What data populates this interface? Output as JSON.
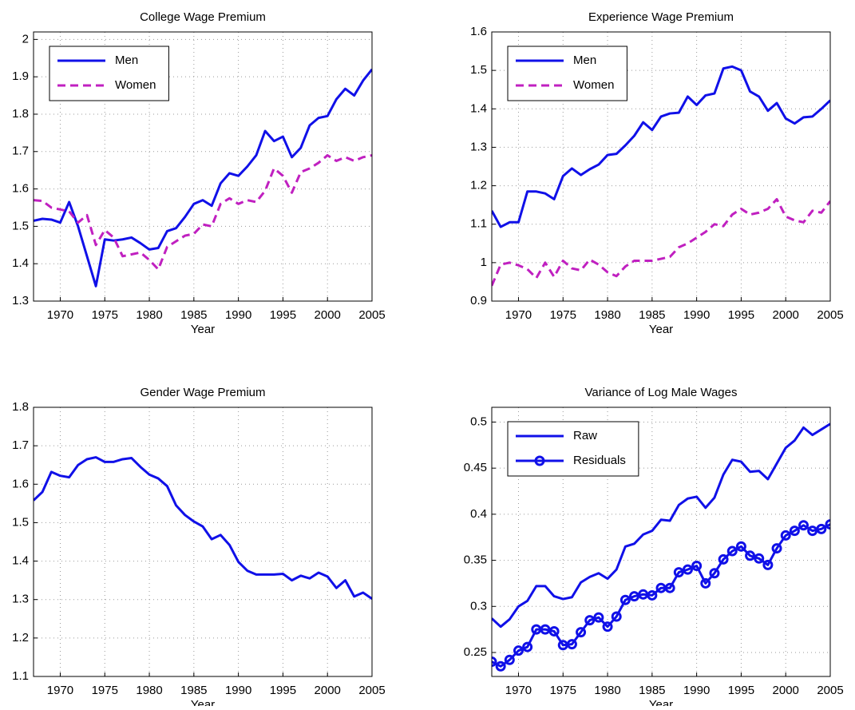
{
  "chart_data": [
    {
      "type": "line",
      "title": "College Wage Premium",
      "xlabel": "Year",
      "x": [
        1967,
        1968,
        1969,
        1970,
        1971,
        1972,
        1973,
        1974,
        1975,
        1976,
        1977,
        1978,
        1979,
        1980,
        1981,
        1982,
        1983,
        1984,
        1985,
        1986,
        1987,
        1988,
        1989,
        1990,
        1991,
        1992,
        1993,
        1994,
        1995,
        1996,
        1997,
        1998,
        1999,
        2000,
        2001,
        2002,
        2003,
        2004,
        2005
      ],
      "series": [
        {
          "name": "Men",
          "color": "#1010e8",
          "dash": "solid",
          "values": [
            1.515,
            1.52,
            1.518,
            1.51,
            1.565,
            1.5,
            1.42,
            1.34,
            1.465,
            1.462,
            1.465,
            1.47,
            1.455,
            1.438,
            1.442,
            1.487,
            1.495,
            1.525,
            1.56,
            1.57,
            1.555,
            1.615,
            1.642,
            1.635,
            1.66,
            1.69,
            1.755,
            1.728,
            1.74,
            1.685,
            1.71,
            1.77,
            1.79,
            1.795,
            1.84,
            1.868,
            1.85,
            1.89,
            1.92
          ]
        },
        {
          "name": "Women",
          "color": "#c020c0",
          "dash": "dashed",
          "values": [
            1.57,
            1.568,
            1.55,
            1.545,
            1.54,
            1.51,
            1.53,
            1.45,
            1.49,
            1.47,
            1.42,
            1.425,
            1.43,
            1.41,
            1.385,
            1.445,
            1.46,
            1.475,
            1.48,
            1.505,
            1.5,
            1.56,
            1.575,
            1.56,
            1.57,
            1.565,
            1.595,
            1.655,
            1.635,
            1.59,
            1.645,
            1.655,
            1.67,
            1.69,
            1.675,
            1.685,
            1.675,
            1.685,
            1.69
          ]
        }
      ],
      "xlim": [
        1967,
        2005
      ],
      "xticks": [
        1970,
        1975,
        1980,
        1985,
        1990,
        1995,
        2000,
        2005
      ],
      "ylim": [
        1.3,
        2.02
      ],
      "yticks": [
        1.3,
        1.4,
        1.5,
        1.6,
        1.7,
        1.8,
        1.9,
        2
      ],
      "grid": true,
      "legend": "upper-left"
    },
    {
      "type": "line",
      "title": "Experience Wage Premium",
      "xlabel": "Year",
      "x": [
        1967,
        1968,
        1969,
        1970,
        1971,
        1972,
        1973,
        1974,
        1975,
        1976,
        1977,
        1978,
        1979,
        1980,
        1981,
        1982,
        1983,
        1984,
        1985,
        1986,
        1987,
        1988,
        1989,
        1990,
        1991,
        1992,
        1993,
        1994,
        1995,
        1996,
        1997,
        1998,
        1999,
        2000,
        2001,
        2002,
        2003,
        2004,
        2005
      ],
      "series": [
        {
          "name": "Men",
          "color": "#1010e8",
          "dash": "solid",
          "values": [
            1.135,
            1.093,
            1.105,
            1.105,
            1.185,
            1.185,
            1.18,
            1.165,
            1.225,
            1.245,
            1.228,
            1.243,
            1.255,
            1.28,
            1.283,
            1.305,
            1.33,
            1.365,
            1.345,
            1.38,
            1.388,
            1.39,
            1.432,
            1.41,
            1.435,
            1.44,
            1.505,
            1.51,
            1.5,
            1.445,
            1.432,
            1.395,
            1.415,
            1.375,
            1.362,
            1.378,
            1.38,
            1.4,
            1.422
          ]
        },
        {
          "name": "Women",
          "color": "#c020c0",
          "dash": "dashed",
          "values": [
            0.94,
            0.995,
            1.0,
            0.993,
            0.983,
            0.96,
            1.0,
            0.963,
            1.005,
            0.985,
            0.98,
            1.008,
            0.995,
            0.975,
            0.965,
            0.99,
            1.005,
            1.005,
            1.005,
            1.01,
            1.015,
            1.04,
            1.05,
            1.065,
            1.08,
            1.1,
            1.095,
            1.125,
            1.14,
            1.125,
            1.13,
            1.14,
            1.165,
            1.12,
            1.11,
            1.105,
            1.135,
            1.13,
            1.16
          ]
        }
      ],
      "xlim": [
        1967,
        2005
      ],
      "xticks": [
        1970,
        1975,
        1980,
        1985,
        1990,
        1995,
        2000,
        2005
      ],
      "ylim": [
        0.9,
        1.6
      ],
      "yticks": [
        0.9,
        1,
        1.1,
        1.2,
        1.3,
        1.4,
        1.5,
        1.6
      ],
      "grid": true,
      "legend": "upper-left"
    },
    {
      "type": "line",
      "title": "Gender Wage Premium",
      "xlabel": "Year",
      "x": [
        1967,
        1968,
        1969,
        1970,
        1971,
        1972,
        1973,
        1974,
        1975,
        1976,
        1977,
        1978,
        1979,
        1980,
        1981,
        1982,
        1983,
        1984,
        1985,
        1986,
        1987,
        1988,
        1989,
        1990,
        1991,
        1992,
        1993,
        1994,
        1995,
        1996,
        1997,
        1998,
        1999,
        2000,
        2001,
        2002,
        2003,
        2004,
        2005
      ],
      "color": "#1010e8",
      "values": [
        1.558,
        1.58,
        1.632,
        1.622,
        1.618,
        1.65,
        1.665,
        1.67,
        1.658,
        1.658,
        1.665,
        1.668,
        1.645,
        1.625,
        1.615,
        1.595,
        1.545,
        1.52,
        1.503,
        1.49,
        1.457,
        1.468,
        1.442,
        1.398,
        1.375,
        1.365,
        1.365,
        1.365,
        1.367,
        1.35,
        1.362,
        1.355,
        1.37,
        1.36,
        1.33,
        1.35,
        1.308,
        1.318,
        1.302
      ],
      "xlim": [
        1967,
        2005
      ],
      "xticks": [
        1970,
        1975,
        1980,
        1985,
        1990,
        1995,
        2000,
        2005
      ],
      "ylim": [
        1.1,
        1.8
      ],
      "yticks": [
        1.1,
        1.2,
        1.3,
        1.4,
        1.5,
        1.6,
        1.7,
        1.8
      ],
      "grid": true
    },
    {
      "type": "line",
      "title": "Variance of Log Male Wages",
      "xlabel": "Year",
      "x": [
        1967,
        1968,
        1969,
        1970,
        1971,
        1972,
        1973,
        1974,
        1975,
        1976,
        1977,
        1978,
        1979,
        1980,
        1981,
        1982,
        1983,
        1984,
        1985,
        1986,
        1987,
        1988,
        1989,
        1990,
        1991,
        1992,
        1993,
        1994,
        1995,
        1996,
        1997,
        1998,
        1999,
        2000,
        2001,
        2002,
        2003,
        2004,
        2005
      ],
      "series": [
        {
          "name": "Raw",
          "color": "#1010e8",
          "dash": "solid",
          "values": [
            0.287,
            0.278,
            0.286,
            0.3,
            0.306,
            0.322,
            0.322,
            0.311,
            0.308,
            0.31,
            0.326,
            0.332,
            0.336,
            0.33,
            0.34,
            0.365,
            0.368,
            0.378,
            0.382,
            0.394,
            0.393,
            0.41,
            0.417,
            0.419,
            0.407,
            0.418,
            0.443,
            0.459,
            0.457,
            0.446,
            0.447,
            0.438,
            0.455,
            0.472,
            0.48,
            0.494,
            0.486,
            0.492,
            0.498
          ]
        },
        {
          "name": "Residuals",
          "color": "#1010e8",
          "dash": "solid",
          "marker": "circle",
          "values": [
            0.24,
            0.235,
            0.242,
            0.252,
            0.256,
            0.275,
            0.275,
            0.273,
            0.258,
            0.259,
            0.272,
            0.285,
            0.288,
            0.278,
            0.289,
            0.307,
            0.311,
            0.313,
            0.312,
            0.32,
            0.32,
            0.337,
            0.34,
            0.344,
            0.325,
            0.336,
            0.351,
            0.36,
            0.365,
            0.355,
            0.352,
            0.345,
            0.363,
            0.377,
            0.382,
            0.388,
            0.382,
            0.384,
            0.389
          ]
        }
      ],
      "xlim": [
        1967,
        2005
      ],
      "xticks": [
        1970,
        1975,
        1980,
        1985,
        1990,
        1995,
        2000,
        2005
      ],
      "ylim": [
        0.224,
        0.516
      ],
      "yticks": [
        0.25,
        0.3,
        0.35,
        0.4,
        0.45,
        0.5
      ],
      "grid": true,
      "legend": "upper-left"
    }
  ]
}
